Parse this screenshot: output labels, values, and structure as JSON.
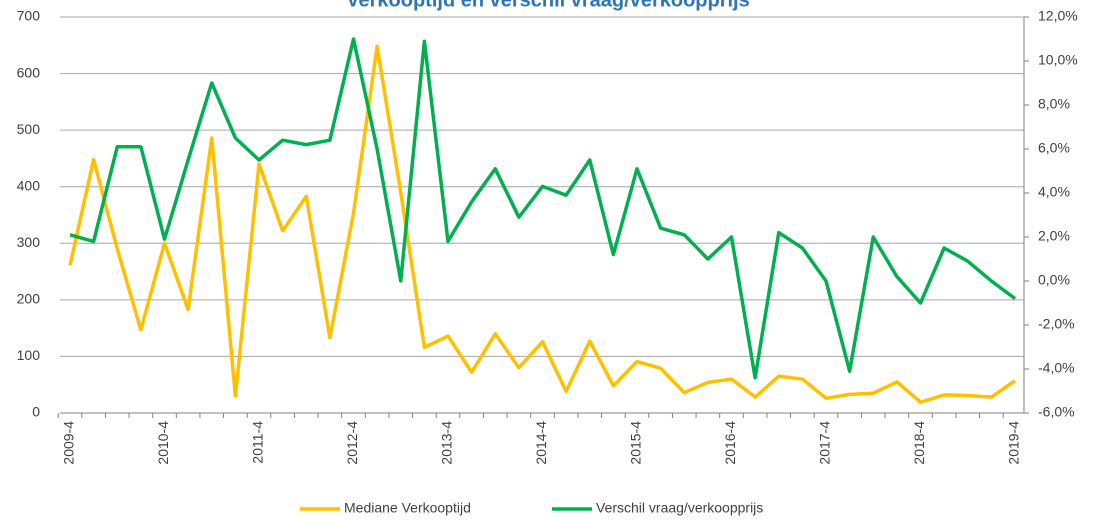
{
  "chart_data": {
    "type": "line",
    "title": "Verkooptijd en verschil vraag/verkoopprijs",
    "categories": [
      "2009-4",
      null,
      null,
      null,
      "2010-4",
      null,
      null,
      null,
      "2011-4",
      null,
      null,
      null,
      "2012-4",
      null,
      null,
      null,
      "2013-4",
      null,
      null,
      null,
      "2014-4",
      null,
      null,
      null,
      "2015-4",
      null,
      null,
      null,
      "2016-4",
      null,
      null,
      null,
      "2017-4",
      null,
      null,
      null,
      "2018-4",
      null,
      null,
      null,
      "2019-4"
    ],
    "series": [
      {
        "name": "Mediane Verkooptijd",
        "color": "#ffc000",
        "values": [
          261,
          448,
          290,
          147,
          300,
          183,
          486,
          30,
          440,
          322,
          383,
          133,
          353,
          648,
          390,
          116,
          136,
          72,
          140,
          80,
          126,
          38,
          127,
          48,
          91,
          79,
          36,
          54,
          60,
          28,
          65,
          60,
          26,
          33,
          35,
          55,
          19,
          32,
          31,
          28,
          57
        ]
      },
      {
        "name": "Verschil vraag/verkoopprijs",
        "color": "#00b050",
        "axis": "y2",
        "values": [
          2.1,
          1.8,
          6.1,
          6.1,
          1.9,
          5.5,
          9.0,
          6.5,
          5.5,
          6.4,
          6.2,
          6.4,
          11.0,
          6.0,
          0.0,
          10.9,
          1.8,
          3.6,
          5.1,
          2.9,
          4.3,
          3.9,
          5.5,
          1.2,
          5.1,
          2.4,
          2.1,
          1.0,
          2.0,
          -4.4,
          2.2,
          1.5,
          0.0,
          -4.1,
          2.0,
          0.2,
          -1.0,
          1.5,
          0.9,
          0.0,
          -0.8
        ]
      }
    ],
    "ylim": [
      0,
      700
    ],
    "yticks": [
      0,
      100,
      200,
      300,
      400,
      500,
      600,
      700
    ],
    "y2lim": [
      -6,
      12
    ],
    "y2ticks": [
      {
        "value": -6,
        "label": "-6,0%"
      },
      {
        "value": -4,
        "label": "-4,0%"
      },
      {
        "value": -2,
        "label": "-2,0%"
      },
      {
        "value": 0,
        "label": "0,0%"
      },
      {
        "value": 2,
        "label": "2,0%"
      },
      {
        "value": 4,
        "label": "4,0%"
      },
      {
        "value": 6,
        "label": "6,0%"
      },
      {
        "value": 8,
        "label": "8,0%"
      },
      {
        "value": 10,
        "label": "10,0%"
      },
      {
        "value": 12,
        "label": "12,0%"
      }
    ],
    "grid": true,
    "legend": "bottom"
  }
}
